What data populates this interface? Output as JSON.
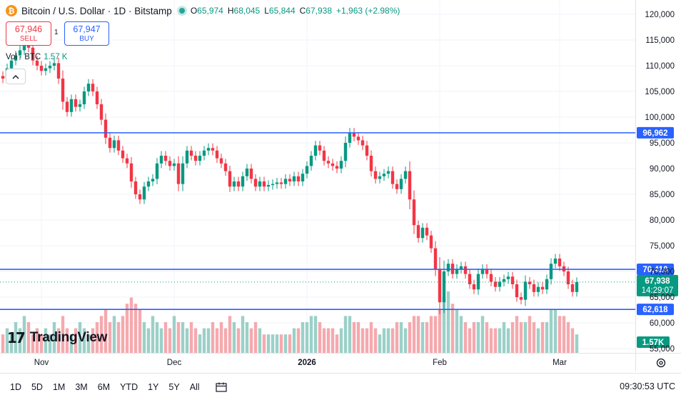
{
  "header": {
    "icon": "bitcoin-icon",
    "title": "Bitcoin / U.S. Dollar · 1D · Bitstamp",
    "open_label": "O",
    "open": "65,974",
    "high_label": "H",
    "high": "68,045",
    "low_label": "L",
    "low": "65,844",
    "close_label": "C",
    "close": "67,938",
    "change": "+1,963 (+2.98%)"
  },
  "trade": {
    "sell_price": "67,946",
    "sell_label": "SELL",
    "spread": "1",
    "buy_price": "67,947",
    "buy_label": "BUY"
  },
  "volume_legend": {
    "label": "Vol · BTC",
    "value": "1.57 K"
  },
  "logo_text": "TradingView",
  "toolbar": {
    "ranges": [
      "1D",
      "5D",
      "1M",
      "3M",
      "6M",
      "YTD",
      "1Y",
      "5Y",
      "All"
    ],
    "clock": "09:30:53 UTC"
  },
  "colors": {
    "up": "#089981",
    "down": "#f23645",
    "up_vol": "#9bd0c8",
    "down_vol": "#f5a9ae",
    "hline": "#2962ff"
  },
  "chart_data": {
    "type": "candlestick",
    "y_axis": {
      "min": 55000,
      "max": 120000,
      "ticks": [
        55000,
        60000,
        65000,
        70000,
        75000,
        80000,
        85000,
        90000,
        95000,
        100000,
        105000,
        110000,
        115000,
        120000
      ],
      "tick_labels": [
        "55,000",
        "60,000",
        "65,000",
        "70,000",
        "75,000",
        "80,000",
        "85,000",
        "90,000",
        "95,000",
        "100,000",
        "105,000",
        "110,000",
        "115,000",
        "120,000"
      ]
    },
    "x_axis": {
      "labels": [
        "Nov",
        "Dec",
        "2026",
        "Feb",
        "Mar"
      ],
      "label_bar_index": [
        9,
        40,
        71,
        102,
        130
      ]
    },
    "horizontal_lines": [
      {
        "value": 96962,
        "label": "96,962"
      },
      {
        "value": 70410,
        "label": "70,410"
      },
      {
        "value": 62618,
        "label": "62,618"
      }
    ],
    "last_price": {
      "value": 67938,
      "label": "67,938",
      "countdown": "14:29:07"
    },
    "volume_last_label": "1.57K",
    "start_open": 108000,
    "closes": [
      107500,
      109500,
      111000,
      112000,
      113000,
      114500,
      113500,
      111000,
      110000,
      109000,
      109500,
      110000,
      110500,
      107500,
      103000,
      101000,
      103500,
      102000,
      102500,
      105000,
      106500,
      105000,
      102500,
      99500,
      96000,
      94000,
      95500,
      93500,
      92000,
      91000,
      87500,
      85000,
      84000,
      86500,
      87500,
      88000,
      91000,
      92500,
      91500,
      90500,
      91000,
      87000,
      91000,
      93500,
      92500,
      91500,
      92500,
      93500,
      94000,
      93500,
      92000,
      91000,
      89500,
      86500,
      87500,
      86500,
      88500,
      90000,
      88000,
      86500,
      87500,
      86500,
      86800,
      87000,
      87300,
      87000,
      88000,
      87500,
      88500,
      87500,
      89000,
      90500,
      92500,
      94500,
      93500,
      91500,
      91000,
      90500,
      90000,
      91500,
      95000,
      97000,
      96200,
      95500,
      94500,
      92500,
      89500,
      88000,
      88500,
      89000,
      89500,
      87000,
      86000,
      88000,
      89500,
      84000,
      79000,
      76500,
      78500,
      77000,
      74500,
      70500,
      64000,
      70000,
      71500,
      69500,
      70500,
      71000,
      69500,
      67500,
      66500,
      69500,
      70500,
      69500,
      68000,
      67000,
      68000,
      68500,
      69000,
      67500,
      65000,
      64500,
      68000,
      67500,
      66000,
      67000,
      66500,
      68500,
      71500,
      72500,
      71000,
      70000,
      67500,
      66000,
      67938
    ],
    "volumes": [
      3,
      4,
      3,
      5,
      4,
      6,
      5,
      3,
      4,
      3,
      4,
      3,
      5,
      4,
      6,
      4,
      3,
      4,
      5,
      4,
      3,
      4,
      5,
      6,
      7,
      5,
      6,
      5,
      6,
      8,
      9,
      8,
      7,
      5,
      4,
      6,
      5,
      4,
      5,
      4,
      6,
      5,
      5,
      4,
      5,
      4,
      3,
      4,
      4,
      5,
      4,
      5,
      4,
      6,
      5,
      4,
      6,
      5,
      4,
      5,
      4,
      3,
      3,
      3,
      3,
      3,
      3,
      3,
      4,
      4,
      5,
      5,
      6,
      6,
      5,
      4,
      4,
      4,
      3,
      4,
      6,
      6,
      5,
      5,
      4,
      4,
      5,
      4,
      3,
      4,
      4,
      4,
      5,
      5,
      4,
      5,
      6,
      6,
      5,
      5,
      6,
      6,
      7,
      9,
      10,
      8,
      7,
      6,
      5,
      4,
      5,
      5,
      6,
      5,
      4,
      4,
      4,
      5,
      4,
      5,
      6,
      5,
      5,
      6,
      5,
      4,
      5,
      5,
      7,
      7,
      6,
      6,
      5,
      4,
      3
    ]
  }
}
